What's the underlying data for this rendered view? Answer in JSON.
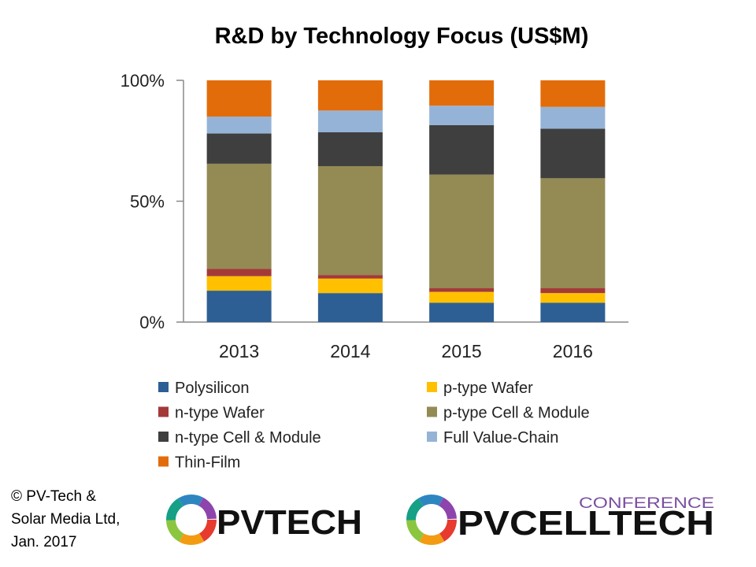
{
  "chart_data": {
    "type": "bar",
    "stacked": true,
    "normalized_percent": true,
    "title": "R&D by Technology Focus (US$M)",
    "categories": [
      "2013",
      "2014",
      "2015",
      "2016"
    ],
    "y_ticks": [
      "100%",
      "50%",
      "0%"
    ],
    "ylim": [
      0,
      100
    ],
    "grid": false,
    "legend_position": "bottom",
    "series": [
      {
        "name": "Polysilicon",
        "color": "#2e5f94",
        "values": [
          13,
          12,
          8,
          8
        ]
      },
      {
        "name": "p-type Wafer",
        "color": "#ffc000",
        "values": [
          6,
          6,
          4.5,
          4
        ]
      },
      {
        "name": "n-type Wafer",
        "color": "#a33a38",
        "values": [
          3,
          1.5,
          1.5,
          2
        ]
      },
      {
        "name": "p-type Cell & Module",
        "color": "#948a54",
        "values": [
          43.5,
          45,
          47,
          45.5
        ]
      },
      {
        "name": "n-type Cell & Module",
        "color": "#3f3f3f",
        "values": [
          12.5,
          14,
          20.5,
          20.5
        ]
      },
      {
        "name": "Full Value-Chain",
        "color": "#95b3d7",
        "values": [
          7,
          9,
          8,
          9
        ]
      },
      {
        "name": "Thin-Film",
        "color": "#e36c0a",
        "values": [
          15,
          12.5,
          10.5,
          11
        ]
      }
    ]
  },
  "footer": {
    "copyright_lines": [
      "© PV-Tech &",
      "Solar Media Ltd,",
      "Jan. 2017"
    ]
  },
  "logos": {
    "left": {
      "name": "PVTECH",
      "text": "PVTECH"
    },
    "right": {
      "name": "PVCELLTECH",
      "text": "PVCELLTECH",
      "super": "CONFERENCE",
      "super_color": "#7a4fa0"
    }
  }
}
